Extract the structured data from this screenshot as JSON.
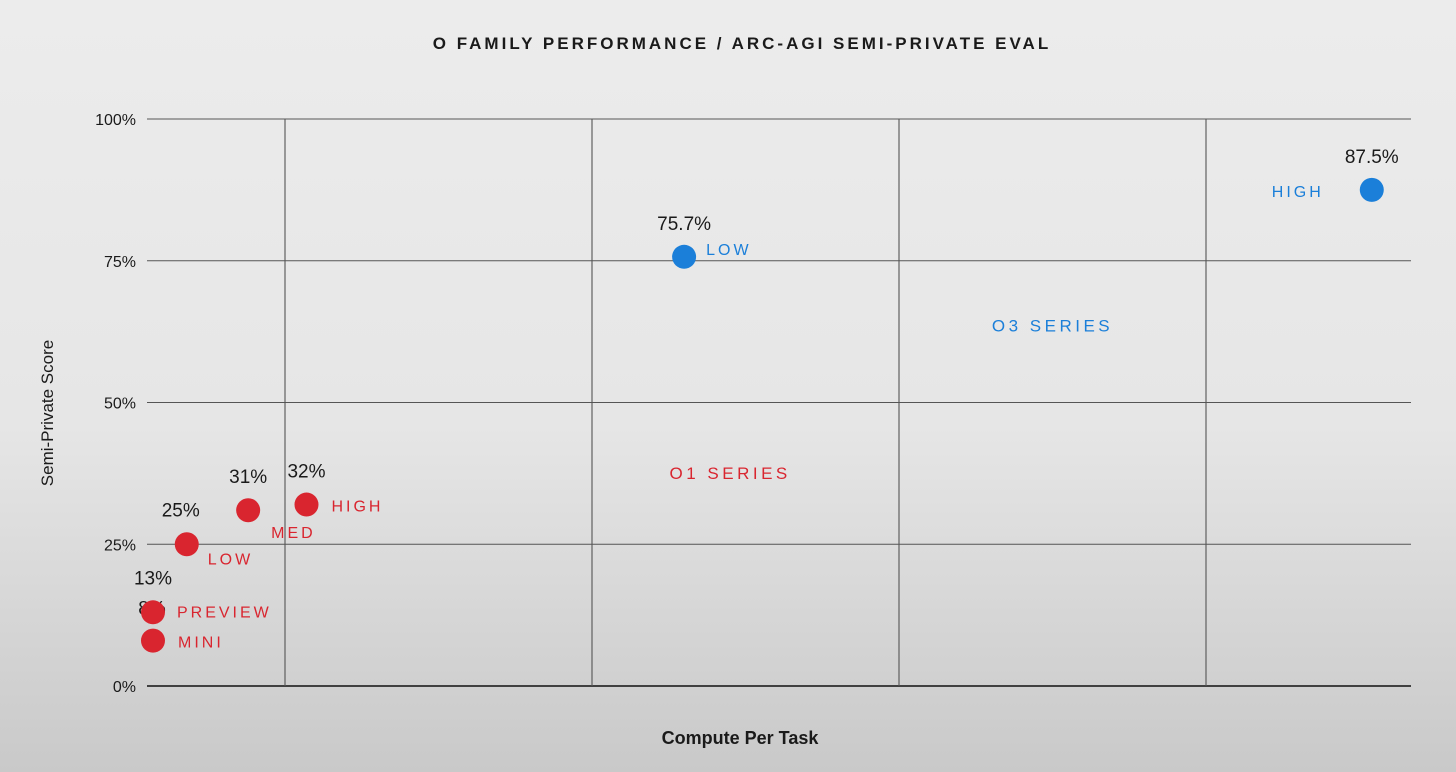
{
  "chart_data": {
    "type": "scatter",
    "title": "O FAMILY PERFORMANCE / ARC-AGI SEMI-PRIVATE EVAL",
    "xlabel": "Compute Per Task",
    "ylabel": "Semi-Private Score",
    "ylim": [
      0,
      100
    ],
    "yticks": [
      {
        "value": 0,
        "label": "0%"
      },
      {
        "value": 25,
        "label": "25%"
      },
      {
        "value": 50,
        "label": "50%"
      },
      {
        "value": 75,
        "label": "75%"
      },
      {
        "value": 100,
        "label": "100%"
      }
    ],
    "xlim": [
      0,
      4.5
    ],
    "xgrid": [
      0.5,
      1.5,
      2.5,
      3.5
    ],
    "grid": true,
    "series": [
      {
        "name": "O1 SERIES",
        "color": "#d9252f",
        "label_position": [
          1.95,
          36.5
        ],
        "points": [
          {
            "x": 0.07,
            "y": 8,
            "value_label": "8%",
            "name": "MINI"
          },
          {
            "x": 0.07,
            "y": 13,
            "value_label": "13%",
            "name": "PREVIEW"
          },
          {
            "x": 0.18,
            "y": 25,
            "value_label": "25%",
            "name": "LOW"
          },
          {
            "x": 0.38,
            "y": 31,
            "value_label": "31%",
            "name": "MED"
          },
          {
            "x": 0.57,
            "y": 32,
            "value_label": "32%",
            "name": "HIGH"
          }
        ]
      },
      {
        "name": "O3 SERIES",
        "color": "#1b7fd9",
        "label_position": [
          3.0,
          62.5
        ],
        "points": [
          {
            "x": 1.8,
            "y": 75.7,
            "value_label": "75.7%",
            "name": "LOW"
          },
          {
            "x": 4.04,
            "y": 87.5,
            "value_label": "87.5%",
            "name": "HIGH"
          }
        ]
      }
    ]
  }
}
